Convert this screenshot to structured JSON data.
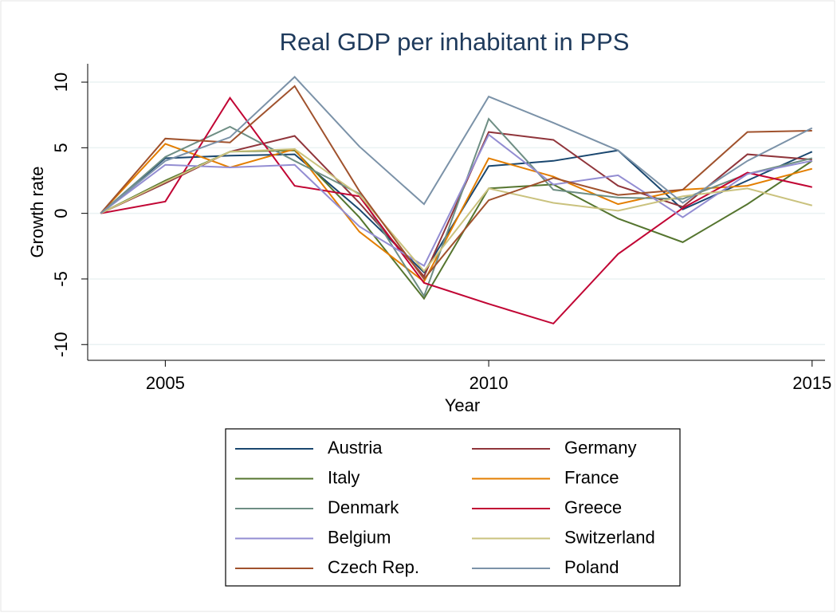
{
  "chart_data": {
    "type": "line",
    "title": "Real GDP per inhabitant in PPS",
    "x_label": "Year",
    "y_label": "Growth rate",
    "x": [
      2004,
      2005,
      2006,
      2007,
      2008,
      2009,
      2010,
      2011,
      2012,
      2013,
      2014,
      2015
    ],
    "xlim": [
      2003.8,
      2015.2
    ],
    "xticks": [
      2005,
      2010,
      2015
    ],
    "ylim": [
      -11.2,
      11.4
    ],
    "yticks": [
      -10,
      -5,
      0,
      5,
      10
    ],
    "grid": true,
    "legend": "bottom",
    "series": [
      {
        "name": "Austria",
        "color": "#1a476f",
        "values": [
          0,
          4.2,
          4.4,
          4.5,
          0.3,
          -4.5,
          3.6,
          4.0,
          4.8,
          0.3,
          2.5,
          4.7
        ]
      },
      {
        "name": "Germany",
        "color": "#90353b",
        "values": [
          0,
          2.3,
          4.7,
          5.9,
          0.8,
          -4.8,
          6.2,
          5.6,
          2.1,
          0.5,
          4.5,
          4.1
        ]
      },
      {
        "name": "Italy",
        "color": "#55752f",
        "values": [
          0,
          2.5,
          4.7,
          4.8,
          -0.3,
          -6.5,
          1.9,
          2.2,
          -0.4,
          -2.2,
          0.7,
          4.0
        ]
      },
      {
        "name": "France",
        "color": "#e37e00",
        "values": [
          0,
          5.3,
          3.5,
          4.9,
          -1.4,
          -5.2,
          4.2,
          2.8,
          0.7,
          1.8,
          2.1,
          3.4
        ]
      },
      {
        "name": "Denmark",
        "color": "#6e8e84",
        "values": [
          0,
          4.3,
          6.6,
          4.0,
          1.5,
          -6.3,
          7.2,
          1.8,
          1.2,
          1.1,
          3.0,
          4.2
        ]
      },
      {
        "name": "Greece",
        "color": "#c10534",
        "values": [
          0,
          0.9,
          8.8,
          2.1,
          1.3,
          -5.3,
          -6.9,
          -8.4,
          -3.1,
          0.4,
          3.1,
          2.0
        ]
      },
      {
        "name": "Belgium",
        "color": "#938dd2",
        "values": [
          0,
          3.7,
          3.5,
          3.7,
          -1.0,
          -4.0,
          6.0,
          2.2,
          2.9,
          -0.3,
          3.0,
          4.0
        ]
      },
      {
        "name": "Switzerland",
        "color": "#cac27e",
        "values": [
          0,
          2.4,
          4.7,
          4.9,
          1.4,
          -4.4,
          1.9,
          0.8,
          0.2,
          1.3,
          1.9,
          0.6
        ]
      },
      {
        "name": "Czech Rep.",
        "color": "#a0522d",
        "values": [
          0,
          5.7,
          5.4,
          9.7,
          1.7,
          -5.0,
          1.0,
          2.7,
          1.4,
          1.8,
          6.2,
          6.3
        ]
      },
      {
        "name": "Poland",
        "color": "#7b92a8",
        "values": [
          0,
          4.0,
          5.8,
          10.4,
          5.1,
          0.7,
          8.9,
          6.9,
          4.8,
          0.8,
          4.0,
          6.5
        ]
      }
    ]
  }
}
